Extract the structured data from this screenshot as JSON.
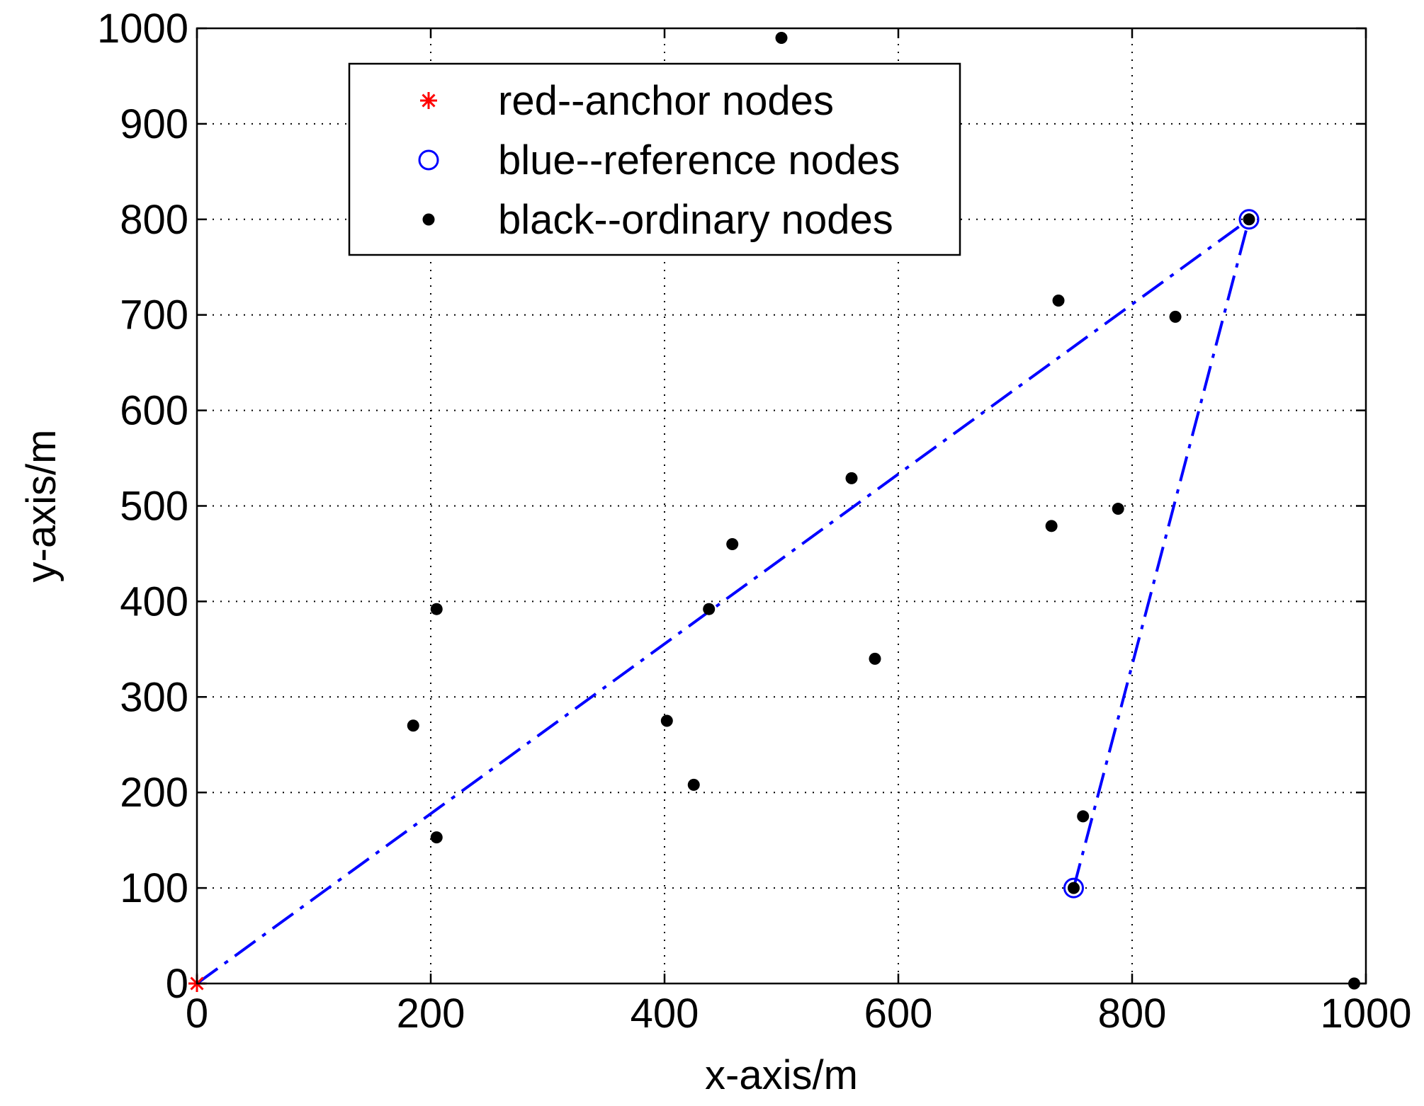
{
  "chart_data": {
    "type": "scatter",
    "xlabel": "x-axis/m",
    "ylabel": "y-axis/m",
    "xlim": [
      0,
      1000
    ],
    "ylim": [
      0,
      1000
    ],
    "xticks": [
      "0",
      "200",
      "400",
      "600",
      "800",
      "1000"
    ],
    "yticks": [
      "0",
      "100",
      "200",
      "300",
      "400",
      "500",
      "600",
      "700",
      "800",
      "900",
      "1000"
    ],
    "grid": true,
    "legend_position": "top-left",
    "legend": [
      {
        "label": "red--anchor nodes",
        "marker": "star",
        "color": "#ff0000"
      },
      {
        "label": "blue--reference nodes",
        "marker": "circle",
        "color": "#0000ff"
      },
      {
        "label": "black--ordinary nodes",
        "marker": "dot",
        "color": "#000000"
      }
    ],
    "series": [
      {
        "name": "red--anchor nodes",
        "marker": "star",
        "color": "#ff0000",
        "points": [
          [
            0,
            0
          ]
        ]
      },
      {
        "name": "blue--reference nodes",
        "marker": "circle",
        "color": "#0000ff",
        "points": [
          [
            750,
            100
          ],
          [
            900,
            800
          ]
        ]
      },
      {
        "name": "black--ordinary nodes",
        "marker": "dot",
        "color": "#000000",
        "points": [
          [
            500,
            990
          ],
          [
            737,
            715
          ],
          [
            837,
            698
          ],
          [
            560,
            529
          ],
          [
            788,
            497
          ],
          [
            731,
            479
          ],
          [
            458,
            460
          ],
          [
            438,
            392
          ],
          [
            205,
            392
          ],
          [
            580,
            340
          ],
          [
            185,
            270
          ],
          [
            402,
            275
          ],
          [
            425,
            208
          ],
          [
            758,
            175
          ],
          [
            205,
            153
          ],
          [
            990,
            0
          ],
          [
            900,
            800
          ],
          [
            750,
            100
          ]
        ]
      }
    ],
    "lines": [
      {
        "style": "dash-dot",
        "color": "#0000ff",
        "points": [
          [
            0,
            0
          ],
          [
            900,
            800
          ]
        ]
      },
      {
        "style": "dash-dot",
        "color": "#0000ff",
        "points": [
          [
            750,
            100
          ],
          [
            900,
            800
          ]
        ]
      }
    ]
  }
}
